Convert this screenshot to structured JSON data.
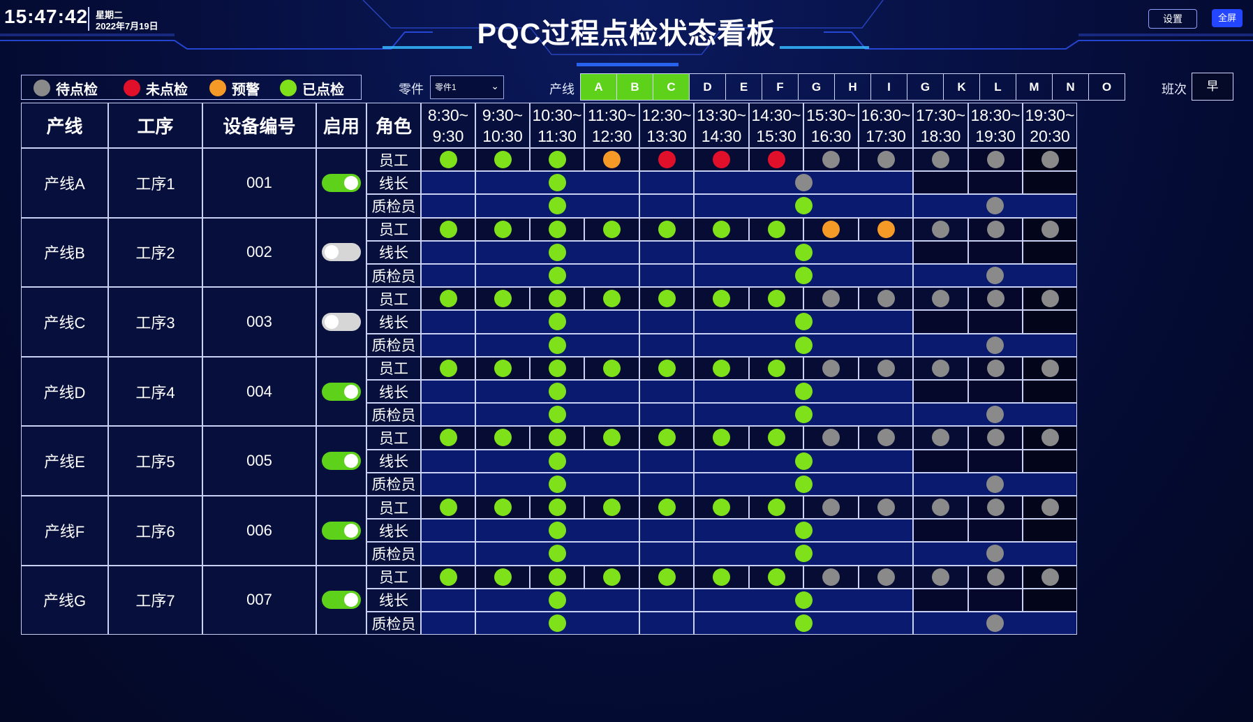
{
  "header": {
    "time": "15:47:42",
    "weekday": "星期二",
    "date": "2022年7月19日",
    "title": "PQC过程点检状态看板",
    "settings_label": "设置",
    "fullscreen_label": "全屏"
  },
  "legend": {
    "items": [
      {
        "label": "待点检",
        "color": "#8a8a8a"
      },
      {
        "label": "未点检",
        "color": "#e0102a"
      },
      {
        "label": "预警",
        "color": "#f59a26"
      },
      {
        "label": "已点检",
        "color": "#7ee11a"
      }
    ]
  },
  "filters": {
    "part_label": "零件",
    "part_value": "零件1",
    "line_label": "产线",
    "lines": [
      {
        "label": "A",
        "active": true
      },
      {
        "label": "B",
        "active": true
      },
      {
        "label": "C",
        "active": true
      },
      {
        "label": "D",
        "active": false
      },
      {
        "label": "E",
        "active": false
      },
      {
        "label": "F",
        "active": false
      },
      {
        "label": "G",
        "active": false
      },
      {
        "label": "H",
        "active": false
      },
      {
        "label": "I",
        "active": false
      },
      {
        "label": "G",
        "active": false
      },
      {
        "label": "K",
        "active": false
      },
      {
        "label": "L",
        "active": false
      },
      {
        "label": "M",
        "active": false
      },
      {
        "label": "N",
        "active": false
      },
      {
        "label": "O",
        "active": false
      }
    ],
    "shift_label": "班次",
    "shift_value": "早"
  },
  "table": {
    "headers": {
      "line": "产线",
      "process": "工序",
      "device": "设备编号",
      "enabled": "启用",
      "role": "角色"
    },
    "time_slots": [
      {
        "from": "8:30~",
        "to": "9:30"
      },
      {
        "from": "9:30~",
        "to": "10:30"
      },
      {
        "from": "10:30~",
        "to": "11:30"
      },
      {
        "from": "11:30~",
        "to": "12:30"
      },
      {
        "from": "12:30~",
        "to": "13:30"
      },
      {
        "from": "13:30~",
        "to": "14:30"
      },
      {
        "from": "14:30~",
        "to": "15:30"
      },
      {
        "from": "15:30~",
        "to": "16:30"
      },
      {
        "from": "16:30~",
        "to": "17:30"
      },
      {
        "from": "17:30~",
        "to": "18:30"
      },
      {
        "from": "18:30~",
        "to": "19:30"
      },
      {
        "from": "19:30~",
        "to": "20:30"
      }
    ],
    "roles": [
      "员工",
      "线长",
      "质检员"
    ],
    "rows": [
      {
        "line": "产线A",
        "process": "工序1",
        "device": "001",
        "enabled": true,
        "employee": [
          "green",
          "green",
          "green",
          "orange",
          "red",
          "red",
          "red",
          "gray",
          "gray",
          "gray",
          "gray",
          "gray"
        ],
        "leader": [
          "green",
          "gray",
          null,
          null,
          null
        ],
        "qc": [
          "green",
          "green",
          "gray"
        ]
      },
      {
        "line": "产线B",
        "process": "工序2",
        "device": "002",
        "enabled": false,
        "employee": [
          "green",
          "green",
          "green",
          "green",
          "green",
          "green",
          "green",
          "orange",
          "orange",
          "gray",
          "gray",
          "gray"
        ],
        "leader": [
          "green",
          "green",
          null,
          null,
          null
        ],
        "qc": [
          "green",
          "green",
          "gray"
        ]
      },
      {
        "line": "产线C",
        "process": "工序3",
        "device": "003",
        "enabled": false,
        "employee": [
          "green",
          "green",
          "green",
          "green",
          "green",
          "green",
          "green",
          "gray",
          "gray",
          "gray",
          "gray",
          "gray"
        ],
        "leader": [
          "green",
          "green",
          null,
          null,
          null
        ],
        "qc": [
          "green",
          "green",
          "gray"
        ]
      },
      {
        "line": "产线D",
        "process": "工序4",
        "device": "004",
        "enabled": true,
        "employee": [
          "green",
          "green",
          "green",
          "green",
          "green",
          "green",
          "green",
          "gray",
          "gray",
          "gray",
          "gray",
          "gray"
        ],
        "leader": [
          "green",
          "green",
          null,
          null,
          null
        ],
        "qc": [
          "green",
          "green",
          "gray"
        ]
      },
      {
        "line": "产线E",
        "process": "工序5",
        "device": "005",
        "enabled": true,
        "employee": [
          "green",
          "green",
          "green",
          "green",
          "green",
          "green",
          "green",
          "gray",
          "gray",
          "gray",
          "gray",
          "gray"
        ],
        "leader": [
          "green",
          "green",
          null,
          null,
          null
        ],
        "qc": [
          "green",
          "green",
          "gray"
        ]
      },
      {
        "line": "产线F",
        "process": "工序6",
        "device": "006",
        "enabled": true,
        "employee": [
          "green",
          "green",
          "green",
          "green",
          "green",
          "green",
          "green",
          "gray",
          "gray",
          "gray",
          "gray",
          "gray"
        ],
        "leader": [
          "green",
          "green",
          null,
          null,
          null
        ],
        "qc": [
          "green",
          "green",
          "gray"
        ]
      },
      {
        "line": "产线G",
        "process": "工序7",
        "device": "007",
        "enabled": true,
        "employee": [
          "green",
          "green",
          "green",
          "green",
          "green",
          "green",
          "green",
          "gray",
          "gray",
          "gray",
          "gray",
          "gray"
        ],
        "leader": [
          "green",
          "green",
          null,
          null,
          null
        ],
        "qc": [
          "green",
          "green",
          "gray"
        ]
      }
    ]
  }
}
